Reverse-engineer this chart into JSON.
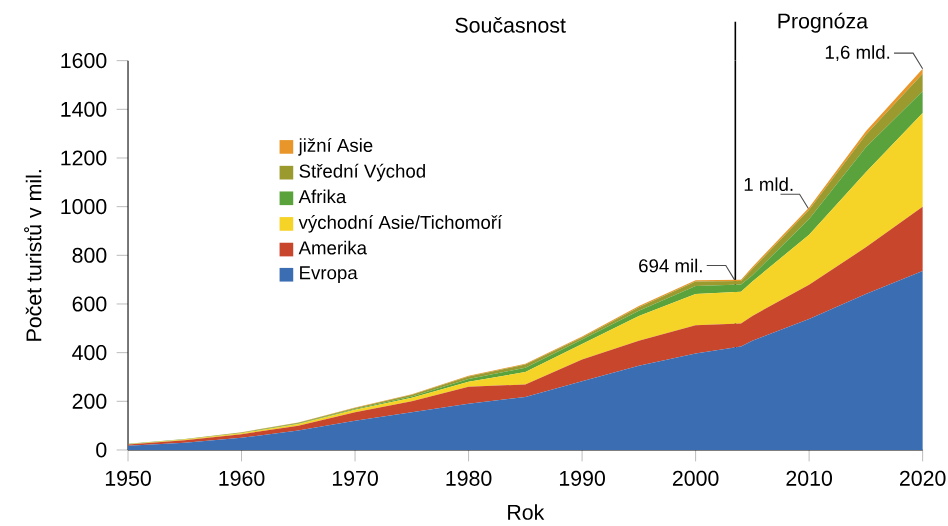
{
  "chart_data": {
    "type": "area",
    "stacked": true,
    "xlabel": "Rok",
    "ylabel": "Počet turistů v mil.",
    "x": [
      1950,
      1955,
      1960,
      1965,
      1970,
      1975,
      1980,
      1985,
      1990,
      1995,
      2000,
      2004,
      2005,
      2010,
      2015,
      2020
    ],
    "series": [
      {
        "name": "Evropa",
        "color": "#3b6db3",
        "values": [
          17,
          30,
          50,
          80,
          120,
          155,
          190,
          218,
          282,
          346,
          397,
          425,
          449,
          538,
          641,
          736
        ]
      },
      {
        "name": "Amerika",
        "color": "#c8462c",
        "values": [
          6,
          10,
          15,
          20,
          35,
          45,
          70,
          51,
          90,
          103,
          116,
          95,
          102,
          141,
          192,
          264
        ]
      },
      {
        "name": "východní Asie/Tichomoří",
        "color": "#f5d327",
        "values": [
          1,
          3,
          4,
          7,
          10,
          15,
          20,
          51,
          64,
          102,
          128,
          130,
          141,
          206,
          308,
          385
        ]
      },
      {
        "name": "Afrika",
        "color": "#5aa33c",
        "values": [
          1,
          1,
          1,
          2,
          3,
          5,
          12,
          18,
          18,
          21,
          33,
          30,
          26,
          64,
          103,
          89
        ]
      },
      {
        "name": "Střední Východ",
        "color": "#9a9a2e",
        "values": [
          1,
          1,
          2,
          3,
          5,
          7,
          10,
          13,
          8,
          15,
          18,
          14,
          26,
          38,
          51,
          72
        ]
      },
      {
        "name": "jižní Asie",
        "color": "#e8962a",
        "values": [
          0,
          0,
          1,
          1,
          2,
          2,
          3,
          3,
          4,
          5,
          6,
          6,
          8,
          10,
          15,
          21
        ]
      }
    ],
    "xlim": [
      1950,
      2020
    ],
    "ylim": [
      0,
      1600
    ],
    "xticks": [
      1950,
      1960,
      1970,
      1980,
      1990,
      2000,
      2010,
      2020
    ],
    "yticks": [
      0,
      200,
      400,
      600,
      800,
      1000,
      1200,
      1400,
      1600
    ],
    "ref_lines": [
      {
        "axis": "x",
        "value": 2003.5,
        "color": "#000000"
      }
    ],
    "annotations": [
      "Současnost",
      "Prognóza",
      {
        "text": "694 mil.",
        "x": 2003.5,
        "y": 694
      },
      {
        "text": "1 mld.",
        "x": 2010,
        "y": 987
      },
      {
        "text": "1,6 mld.",
        "x": 2020,
        "y": 1567
      }
    ],
    "legend": "top left",
    "grid": false
  }
}
